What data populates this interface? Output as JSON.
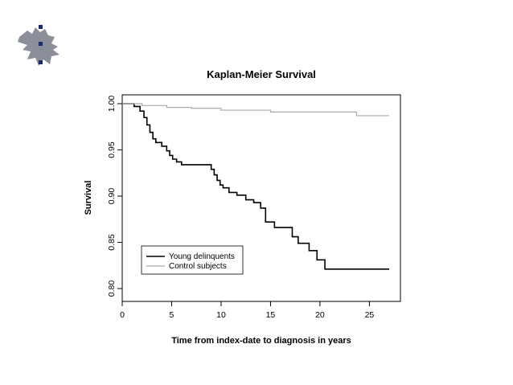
{
  "chart_data": {
    "type": "line",
    "title": "Kaplan-Meier Survival",
    "xlabel": "Time from index-date to diagnosis in years",
    "ylabel": "Survival",
    "xlim": [
      0,
      28
    ],
    "ylim": [
      0.8,
      1.0
    ],
    "x_ticks": [
      0,
      5,
      10,
      15,
      20,
      25
    ],
    "x_tick_labels": [
      "0",
      "5",
      "10",
      "15",
      "20",
      "25"
    ],
    "y_ticks": [
      0.8,
      0.85,
      0.9,
      0.95,
      1.0
    ],
    "y_tick_labels": [
      "0.80",
      "0.85",
      "0.90",
      "0.95",
      "1.00"
    ],
    "grid": false,
    "legend_position": "bottom-left",
    "series": [
      {
        "name": "Young delinquents",
        "color": "#000000",
        "step": true,
        "x": [
          0,
          1.2,
          1.8,
          2.2,
          2.5,
          2.8,
          3.1,
          3.4,
          4.0,
          4.5,
          4.8,
          5.1,
          5.5,
          6.0,
          9.0,
          9.3,
          9.6,
          9.9,
          10.2,
          10.8,
          11.6,
          12.5,
          13.3,
          14.0,
          14.5,
          15.4,
          17.2,
          17.8,
          18.9,
          19.7,
          20.5,
          27.0
        ],
        "y": [
          1.0,
          0.997,
          0.992,
          0.985,
          0.977,
          0.969,
          0.962,
          0.958,
          0.954,
          0.949,
          0.944,
          0.94,
          0.937,
          0.934,
          0.929,
          0.923,
          0.917,
          0.912,
          0.909,
          0.904,
          0.901,
          0.896,
          0.893,
          0.887,
          0.872,
          0.866,
          0.856,
          0.849,
          0.841,
          0.831,
          0.821,
          0.821
        ]
      },
      {
        "name": "Control subjects",
        "color": "#aaaaaa",
        "step": true,
        "x": [
          0,
          2.0,
          4.5,
          7.0,
          10.0,
          15.0,
          23.7,
          27.0
        ],
        "y": [
          1.0,
          0.998,
          0.996,
          0.995,
          0.993,
          0.991,
          0.987,
          0.987
        ]
      }
    ]
  }
}
